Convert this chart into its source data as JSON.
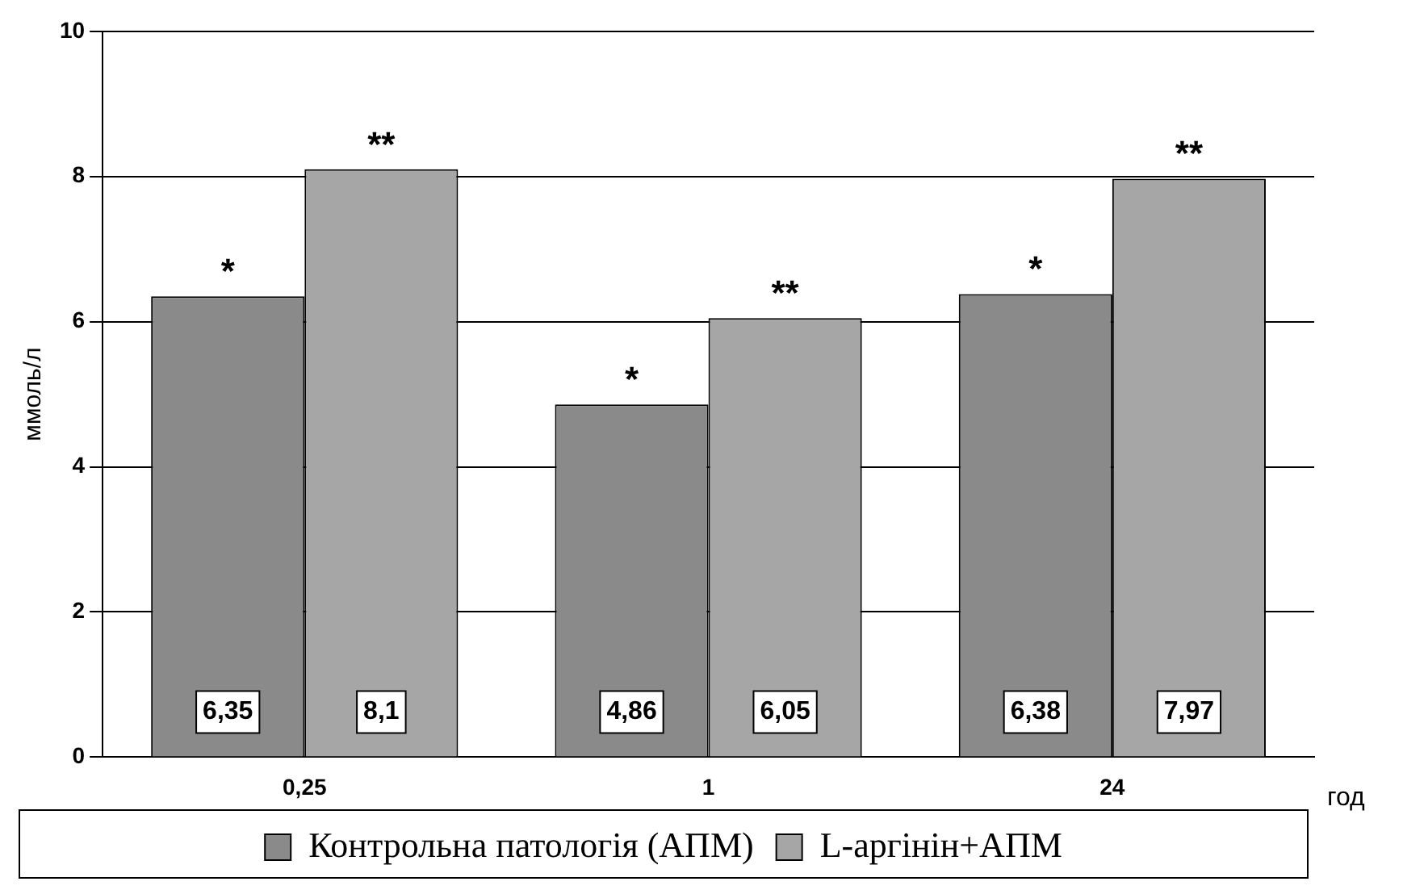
{
  "chart_data": {
    "type": "bar",
    "xlabel": "год",
    "ylabel": "ммоль/л",
    "categories": [
      "0,25",
      "1",
      "24"
    ],
    "series": [
      {
        "name": "Контрольна патологія (АПМ)",
        "color": "#8a8a8a",
        "values": [
          6.35,
          4.86,
          6.38
        ],
        "value_labels": [
          "6,35",
          "4,86",
          "6,38"
        ]
      },
      {
        "name": "L-аргінін+АПМ",
        "color": "#a6a6a6",
        "values": [
          8.1,
          6.05,
          7.97
        ],
        "value_labels": [
          "8,1",
          "6,05",
          "7,97"
        ]
      }
    ],
    "ylim": [
      0,
      10
    ],
    "yticks": [
      0,
      2,
      4,
      6,
      8,
      10
    ],
    "grid": "y",
    "legend": "bottom",
    "annotations": [
      {
        "text": "*",
        "x": "0,25",
        "y": 6.35
      },
      {
        "text": "**",
        "x": "0,25",
        "y": 8.1
      },
      {
        "text": "*",
        "x": "1",
        "y": 4.86
      },
      {
        "text": "**",
        "x": "1",
        "y": 6.05
      },
      {
        "text": "*",
        "x": "24",
        "y": 6.38
      },
      {
        "text": "**",
        "x": "24",
        "y": 7.97
      }
    ]
  }
}
